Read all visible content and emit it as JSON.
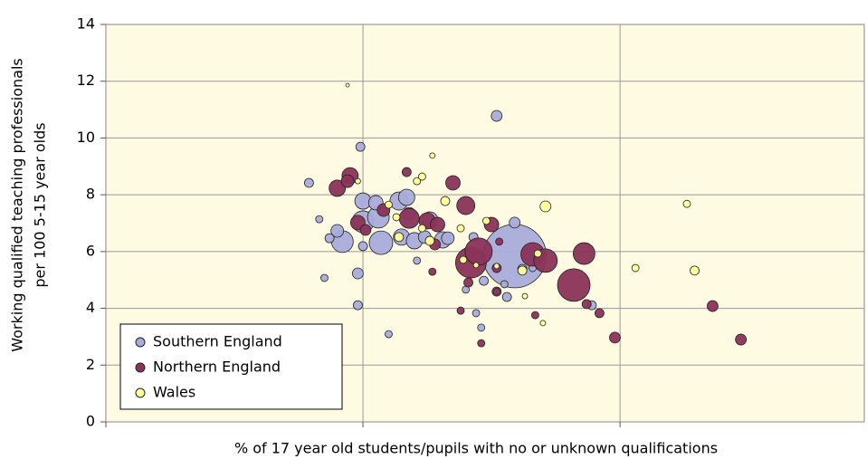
{
  "chart_data": {
    "type": "bubble",
    "xlabel": "% of 17 year old students/pupils with no or unknown qualifications",
    "ylabel": [
      "Working qualified teaching professionals",
      "per 100 5-15 year olds"
    ],
    "xlim": [
      0,
      2.95
    ],
    "xticks": [
      1,
      2
    ],
    "show_xtick_labels": false,
    "ylim": [
      0,
      14
    ],
    "yticks": [
      0,
      2,
      4,
      6,
      8,
      10,
      12,
      14
    ],
    "grid": true,
    "legend": "lower left",
    "background": "#fffbe3",
    "series": [
      {
        "name": "Southern England",
        "color": "#a9acd9",
        "x": [
          0.79,
          0.83,
          0.85,
          0.87,
          0.9,
          0.92,
          0.98,
          0.98,
          0.99,
          1.0,
          1.0,
          1.0,
          1.07,
          1.06,
          1.05,
          1.1,
          1.14,
          1.17,
          1.18,
          1.15,
          1.21,
          1.2,
          1.24,
          1.26,
          1.31,
          1.33,
          1.4,
          1.43,
          1.44,
          1.46,
          1.47,
          1.52,
          1.52,
          1.55,
          1.56,
          1.59,
          1.59,
          1.62,
          1.66,
          1.89
        ],
        "values": [
          8.42,
          7.14,
          5.07,
          6.47,
          6.73,
          6.35,
          4.11,
          5.23,
          9.69,
          7.78,
          7.05,
          6.19,
          6.31,
          7.21,
          7.72,
          3.09,
          7.78,
          7.91,
          7.33,
          6.51,
          5.68,
          6.38,
          6.51,
          7.11,
          6.41,
          6.47,
          4.66,
          6.51,
          3.83,
          3.32,
          4.97,
          10.78,
          4.59,
          4.85,
          4.4,
          7.02,
          5.84,
          5.39,
          5.42,
          4.11
        ],
        "sizes": [
          5,
          4,
          4,
          5,
          7,
          12,
          5,
          6,
          5,
          9,
          12,
          5,
          13,
          12,
          8,
          4,
          10,
          9,
          7,
          9,
          4,
          9,
          7,
          9,
          9,
          7,
          4,
          5,
          4,
          4,
          5,
          6,
          5,
          4,
          5,
          6,
          35,
          5,
          4,
          5
        ]
      },
      {
        "name": "Northern England",
        "color": "#8b3358",
        "x": [
          0.9,
          0.95,
          0.94,
          0.98,
          1.01,
          1.08,
          1.17,
          1.18,
          1.25,
          1.29,
          1.27,
          1.28,
          1.35,
          1.38,
          1.4,
          1.42,
          1.45,
          1.46,
          1.41,
          1.5,
          1.52,
          1.52,
          1.53,
          1.66,
          1.71,
          1.67,
          1.82,
          1.86,
          1.87,
          1.92,
          1.98,
          2.36,
          2.47
        ],
        "values": [
          8.23,
          8.67,
          8.48,
          7.02,
          6.76,
          7.46,
          8.8,
          7.17,
          7.08,
          6.95,
          5.29,
          6.25,
          8.42,
          3.92,
          7.62,
          5.61,
          6.0,
          2.77,
          4.91,
          6.95,
          4.59,
          5.42,
          6.35,
          5.9,
          5.68,
          3.76,
          4.82,
          5.93,
          4.15,
          3.83,
          2.97,
          4.08,
          2.9
        ],
        "sizes": [
          9,
          9,
          7,
          8,
          6,
          7,
          5,
          11,
          9,
          8,
          4,
          6,
          8,
          4,
          10,
          17,
          15,
          4,
          5,
          8,
          4,
          5,
          4,
          13,
          13,
          4,
          18,
          12,
          5,
          5,
          6,
          6,
          6
        ]
      },
      {
        "name": "Wales",
        "color": "#ffff99",
        "x": [
          0.94,
          0.98,
          1.1,
          1.13,
          1.14,
          1.21,
          1.23,
          1.27,
          1.23,
          1.26,
          1.32,
          1.38,
          1.39,
          1.44,
          1.48,
          1.52,
          1.62,
          1.63,
          1.68,
          1.7,
          1.71,
          2.06,
          2.26,
          2.29
        ],
        "values": [
          11.86,
          8.48,
          7.65,
          7.21,
          6.51,
          8.48,
          8.64,
          9.38,
          6.82,
          6.38,
          7.78,
          6.82,
          5.71,
          5.52,
          7.08,
          5.49,
          5.33,
          4.43,
          5.93,
          3.48,
          7.59,
          5.42,
          7.68,
          5.33
        ],
        "sizes": [
          2,
          3,
          4,
          4,
          5,
          4,
          4,
          3,
          4,
          5,
          5,
          4,
          4,
          3,
          4,
          3,
          5,
          3,
          4,
          3,
          6,
          4,
          4,
          5
        ]
      }
    ]
  }
}
